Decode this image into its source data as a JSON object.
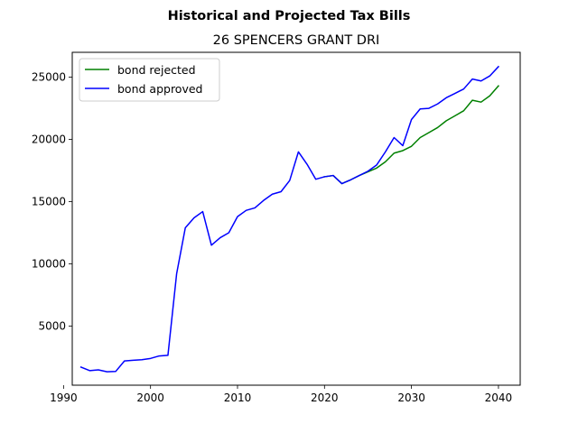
{
  "figure": {
    "suptitle": "Historical and Projected Tax Bills"
  },
  "chart_data": {
    "type": "line",
    "title": "26 SPENCERS GRANT DRI",
    "xlabel": "",
    "ylabel": "",
    "xlim": [
      1991,
      2042.5
    ],
    "ylim": [
      250,
      27000
    ],
    "xticks": [
      1990,
      2000,
      2010,
      2020,
      2030,
      2040
    ],
    "yticks": [
      5000,
      10000,
      15000,
      20000,
      25000
    ],
    "grid": false,
    "legend_placement": "upper-left",
    "series": [
      {
        "name": "bond rejected",
        "color": "#008000",
        "x": [
          2020,
          2021,
          2022,
          2023,
          2024,
          2025,
          2026,
          2027,
          2028,
          2029,
          2030,
          2031,
          2032,
          2033,
          2034,
          2035,
          2036,
          2037,
          2038,
          2039,
          2040
        ],
        "y": [
          17000,
          17100,
          16450,
          16750,
          17100,
          17400,
          17700,
          18200,
          18900,
          19100,
          19450,
          20150,
          20550,
          20950,
          21500,
          21900,
          22300,
          23150,
          23000,
          23500,
          24300
        ]
      },
      {
        "name": "bond approved",
        "color": "#0000ff",
        "x": [
          1992,
          1993,
          1994,
          1995,
          1996,
          1997,
          1998,
          1999,
          2000,
          2001,
          2002,
          2003,
          2004,
          2005,
          2006,
          2007,
          2008,
          2009,
          2010,
          2011,
          2012,
          2013,
          2014,
          2015,
          2016,
          2017,
          2018,
          2019,
          2020,
          2021,
          2022,
          2023,
          2024,
          2025,
          2026,
          2027,
          2028,
          2029,
          2030,
          2031,
          2032,
          2033,
          2034,
          2035,
          2036,
          2037,
          2038,
          2039,
          2040
        ],
        "y": [
          1700,
          1420,
          1480,
          1330,
          1360,
          2200,
          2250,
          2300,
          2400,
          2600,
          2650,
          9200,
          12900,
          13700,
          14200,
          11500,
          12100,
          12500,
          13800,
          14300,
          14500,
          15100,
          15600,
          15800,
          16700,
          19000,
          18000,
          16800,
          17000,
          17100,
          16450,
          16750,
          17100,
          17450,
          17950,
          19000,
          20150,
          19500,
          21600,
          22450,
          22500,
          22850,
          23350,
          23700,
          24050,
          24850,
          24700,
          25100,
          25850
        ]
      }
    ]
  }
}
